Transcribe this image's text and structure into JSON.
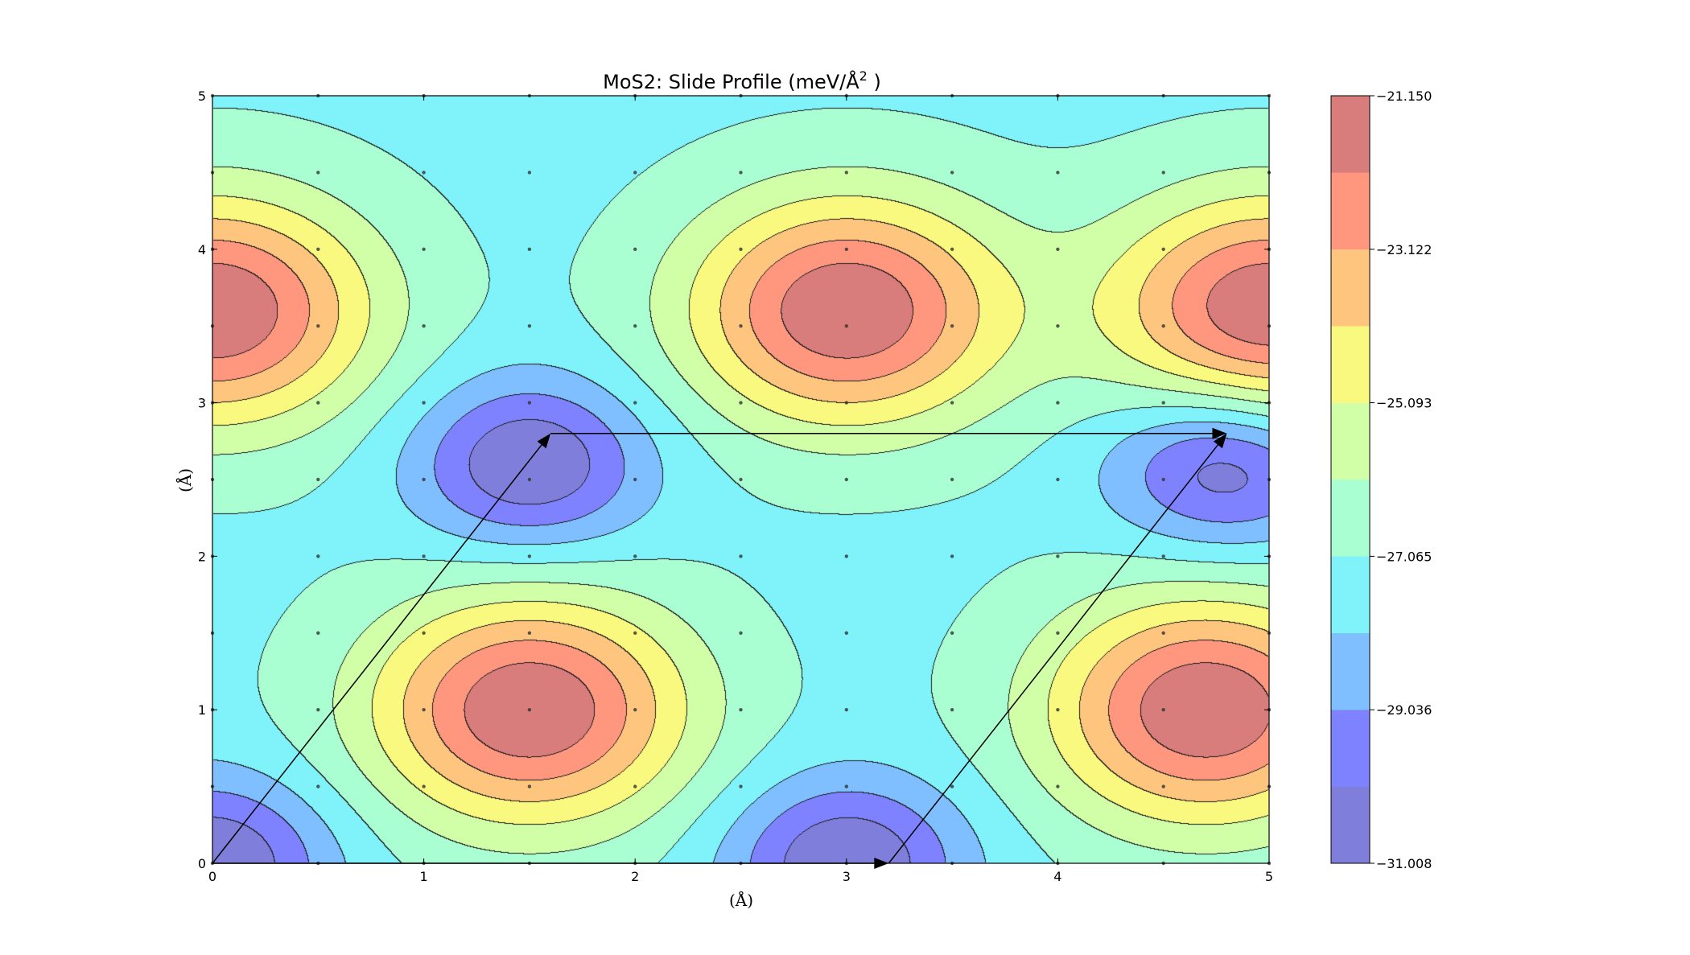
{
  "chart_data": {
    "type": "contour",
    "title": "MoS2: Slide Profile (meV/Å² )",
    "title_parts": {
      "main": "MoS2: Slide Profile (meV/Å",
      "sup": "2",
      "tail": " )"
    },
    "xlabel": "(Å)",
    "ylabel": "(Å)",
    "xlim": [
      0,
      5
    ],
    "ylim": [
      0,
      5
    ],
    "x_ticks": [
      "0",
      "1",
      "2",
      "3",
      "4",
      "5"
    ],
    "y_ticks": [
      "0",
      "1",
      "2",
      "3",
      "4",
      "5"
    ],
    "grid_x": [
      0,
      0.5,
      1,
      1.5,
      2,
      2.5,
      3,
      3.5,
      4,
      4.5,
      5
    ],
    "grid_y": [
      0,
      0.5,
      1,
      1.5,
      2,
      2.5,
      3,
      3.5,
      4,
      4.5,
      5
    ],
    "minima": [
      [
        0,
        0
      ],
      [
        3,
        0
      ],
      [
        1.5,
        2.6
      ],
      [
        4.8,
        2.6
      ]
    ],
    "maxima": [
      [
        1.5,
        1
      ],
      [
        4.7,
        1
      ],
      [
        3,
        3.6
      ],
      [
        0,
        3.6
      ],
      [
        5,
        3.6
      ]
    ],
    "z_min": -31.008,
    "z_max": -21.15,
    "levels": [
      -31.008,
      -30.022,
      -29.036,
      -28.05,
      -27.065,
      -26.079,
      -25.093,
      -24.108,
      -23.122,
      -22.136,
      -21.15
    ],
    "colorbar_ticks": [
      "−21.150",
      "−23.122",
      "−25.093",
      "−27.065",
      "−29.036",
      "−31.008"
    ],
    "colorbar_tick_values": [
      -21.15,
      -23.122,
      -25.093,
      -27.065,
      -29.036,
      -31.008
    ],
    "band_colors": [
      "#7f7fdb",
      "#7f82ff",
      "#7fbfff",
      "#7ff2fa",
      "#a9ffd2",
      "#d1ffa8",
      "#f9f97f",
      "#fec57f",
      "#ff977f",
      "#d87c7c"
    ],
    "arrows": [
      {
        "from": [
          0,
          0
        ],
        "to": [
          3.2,
          0
        ]
      },
      {
        "from": [
          0,
          0
        ],
        "to": [
          1.6,
          2.8
        ]
      },
      {
        "from": [
          1.6,
          2.8
        ],
        "to": [
          4.8,
          2.8
        ]
      },
      {
        "from": [
          3.2,
          0
        ],
        "to": [
          4.8,
          2.8
        ]
      }
    ]
  }
}
